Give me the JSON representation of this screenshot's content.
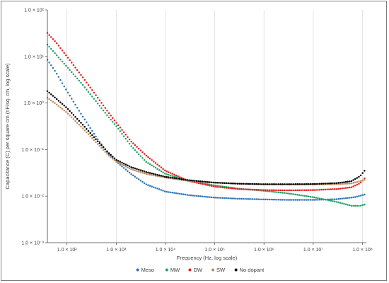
{
  "chart_data": {
    "type": "scatter",
    "title": "",
    "xlabel": "Frequency (Hz, log scale)",
    "ylabel": "Capacitance (C) per square cm (nF/sq. cm, log scale)",
    "x_scale": "log",
    "y_scale": "log",
    "xlim": [
      40,
      120000000
    ],
    "ylim": [
      0.001,
      100
    ],
    "grid": "vertical",
    "legend": "bottom",
    "x_ticks": [
      {
        "value": 100,
        "label": "1.0 × 10²"
      },
      {
        "value": 1000,
        "label": "1.0 × 10³"
      },
      {
        "value": 10000,
        "label": "1.0 × 10⁴"
      },
      {
        "value": 100000,
        "label": "1.0 × 10⁵"
      },
      {
        "value": 1000000,
        "label": "1.0 × 10⁶"
      },
      {
        "value": 10000000,
        "label": "1.0 × 10⁷"
      },
      {
        "value": 100000000,
        "label": "1.0 × 10⁸"
      }
    ],
    "y_ticks": [
      {
        "value": 100,
        "label": "1.0 × 10²"
      },
      {
        "value": 10,
        "label": "1.0 × 10¹"
      },
      {
        "value": 1,
        "label": "1.0 × 10⁰"
      },
      {
        "value": 0.1,
        "label": "1.0 × 10⁻¹"
      },
      {
        "value": 0.01,
        "label": "1.0 × 10⁻²"
      },
      {
        "value": 0.001,
        "label": "1.0 × 10⁻³"
      }
    ],
    "series": [
      {
        "name": "Meso",
        "color": "#2e75b6",
        "points": [
          [
            40,
            8.5
          ],
          [
            60,
            4.5
          ],
          [
            100,
            1.8
          ],
          [
            200,
            0.55
          ],
          [
            400,
            0.18
          ],
          [
            700,
            0.08
          ],
          [
            1000,
            0.055
          ],
          [
            2000,
            0.03
          ],
          [
            4000,
            0.018
          ],
          [
            10000,
            0.0125
          ],
          [
            30000,
            0.0105
          ],
          [
            100000,
            0.0093
          ],
          [
            300000,
            0.0088
          ],
          [
            1000000,
            0.0085
          ],
          [
            3000000,
            0.0083
          ],
          [
            10000000,
            0.0083
          ],
          [
            30000000,
            0.0086
          ],
          [
            70000000,
            0.0095
          ],
          [
            110000000,
            0.0108
          ]
        ]
      },
      {
        "name": "MW",
        "color": "#21a366",
        "points": [
          [
            40,
            18
          ],
          [
            60,
            11
          ],
          [
            100,
            6
          ],
          [
            200,
            2.6
          ],
          [
            400,
            1.05
          ],
          [
            700,
            0.5
          ],
          [
            1000,
            0.32
          ],
          [
            2000,
            0.12
          ],
          [
            4000,
            0.055
          ],
          [
            10000,
            0.03
          ],
          [
            30000,
            0.021
          ],
          [
            100000,
            0.017
          ],
          [
            300000,
            0.0145
          ],
          [
            1000000,
            0.013
          ],
          [
            3000000,
            0.0115
          ],
          [
            10000000,
            0.0095
          ],
          [
            30000000,
            0.0075
          ],
          [
            60000000,
            0.0062
          ],
          [
            90000000,
            0.0062
          ],
          [
            110000000,
            0.0066
          ]
        ]
      },
      {
        "name": "DW",
        "color": "#e02020",
        "points": [
          [
            40,
            32
          ],
          [
            60,
            20
          ],
          [
            100,
            10
          ],
          [
            200,
            3.8
          ],
          [
            400,
            1.4
          ],
          [
            700,
            0.62
          ],
          [
            1000,
            0.38
          ],
          [
            2000,
            0.15
          ],
          [
            4000,
            0.075
          ],
          [
            10000,
            0.035
          ],
          [
            30000,
            0.021
          ],
          [
            100000,
            0.016
          ],
          [
            300000,
            0.0142
          ],
          [
            1000000,
            0.0135
          ],
          [
            3000000,
            0.0133
          ],
          [
            10000000,
            0.0135
          ],
          [
            30000000,
            0.0142
          ],
          [
            60000000,
            0.0155
          ],
          [
            90000000,
            0.019
          ],
          [
            110000000,
            0.024
          ]
        ]
      },
      {
        "name": "SW",
        "color": "#c08a5e",
        "points": [
          [
            40,
            1.3
          ],
          [
            60,
            0.95
          ],
          [
            100,
            0.62
          ],
          [
            200,
            0.3
          ],
          [
            400,
            0.14
          ],
          [
            700,
            0.075
          ],
          [
            1000,
            0.055
          ],
          [
            2000,
            0.038
          ],
          [
            4000,
            0.03
          ],
          [
            10000,
            0.025
          ],
          [
            30000,
            0.021
          ],
          [
            100000,
            0.0195
          ],
          [
            300000,
            0.0185
          ],
          [
            1000000,
            0.018
          ],
          [
            3000000,
            0.0178
          ],
          [
            10000000,
            0.0178
          ],
          [
            30000000,
            0.018
          ],
          [
            60000000,
            0.0188
          ],
          [
            90000000,
            0.021
          ],
          [
            110000000,
            0.0225
          ]
        ]
      },
      {
        "name": "No dopant",
        "color": "#000000",
        "points": [
          [
            40,
            1.8
          ],
          [
            60,
            1.25
          ],
          [
            100,
            0.78
          ],
          [
            200,
            0.36
          ],
          [
            400,
            0.16
          ],
          [
            700,
            0.085
          ],
          [
            1000,
            0.06
          ],
          [
            2000,
            0.042
          ],
          [
            4000,
            0.033
          ],
          [
            10000,
            0.026
          ],
          [
            30000,
            0.022
          ],
          [
            100000,
            0.0195
          ],
          [
            300000,
            0.0185
          ],
          [
            1000000,
            0.018
          ],
          [
            3000000,
            0.018
          ],
          [
            10000000,
            0.0182
          ],
          [
            30000000,
            0.019
          ],
          [
            60000000,
            0.021
          ],
          [
            90000000,
            0.027
          ],
          [
            110000000,
            0.035
          ]
        ]
      }
    ]
  }
}
